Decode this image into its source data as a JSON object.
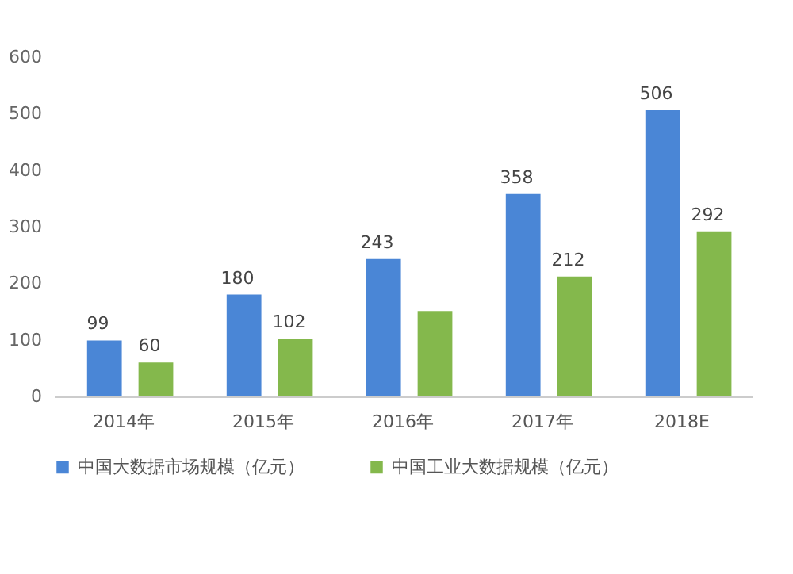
{
  "chart_data": {
    "type": "bar",
    "categories": [
      "2014年",
      "2015年",
      "2016年",
      "2017年",
      "2018E"
    ],
    "series": [
      {
        "name": "中国大数据市场规模（亿元）",
        "color": "#4a86d6",
        "values": [
          99,
          180,
          243,
          358,
          506
        ],
        "value_labels": [
          "99",
          "180",
          "243",
          "358",
          "506"
        ]
      },
      {
        "name": "中国工业大数据规模（亿元）",
        "color": "#84b84c",
        "values": [
          60,
          102,
          151,
          212,
          292
        ],
        "value_labels": [
          "60",
          "102",
          null,
          "212",
          "292"
        ]
      }
    ],
    "ylim": [
      0,
      600
    ],
    "yticks": [
      0,
      100,
      200,
      300,
      400,
      500,
      600
    ],
    "grid": false,
    "legend": "bottom"
  }
}
